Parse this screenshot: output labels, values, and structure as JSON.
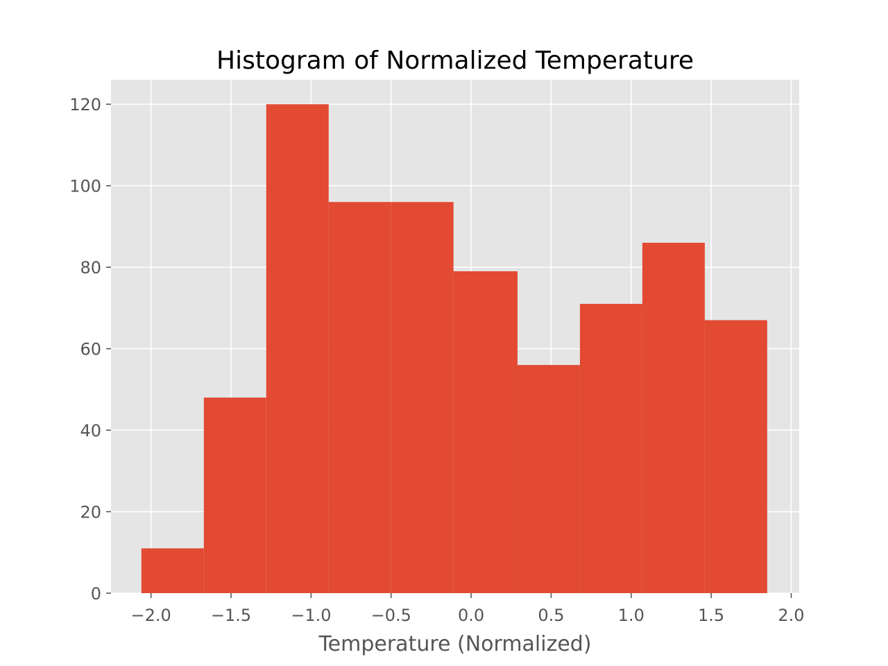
{
  "chart_data": {
    "type": "bar",
    "title": "Histogram of Normalized Temperature",
    "xlabel": "Temperature (Normalized)",
    "ylabel": "",
    "xlim": [
      -2.25,
      2.05
    ],
    "ylim": [
      0,
      126
    ],
    "grid": true,
    "bar_color": "#E24A33",
    "background_color": "#E5E5E5",
    "grid_color": "#FFFFFF",
    "bins": [
      {
        "x0": -2.06,
        "x1": -1.67,
        "count": 11
      },
      {
        "x0": -1.67,
        "x1": -1.28,
        "count": 48
      },
      {
        "x0": -1.28,
        "x1": -0.89,
        "count": 120
      },
      {
        "x0": -0.89,
        "x1": -0.5,
        "count": 96
      },
      {
        "x0": -0.5,
        "x1": -0.11,
        "count": 96
      },
      {
        "x0": -0.11,
        "x1": 0.29,
        "count": 79
      },
      {
        "x0": 0.29,
        "x1": 0.68,
        "count": 56
      },
      {
        "x0": 0.68,
        "x1": 1.07,
        "count": 71
      },
      {
        "x0": 1.07,
        "x1": 1.46,
        "count": 86
      },
      {
        "x0": 1.46,
        "x1": 1.85,
        "count": 67
      }
    ],
    "x_ticks": [
      {
        "value": -2.0,
        "label": "−2.0"
      },
      {
        "value": -1.5,
        "label": "−1.5"
      },
      {
        "value": -1.0,
        "label": "−1.0"
      },
      {
        "value": -0.5,
        "label": "−0.5"
      },
      {
        "value": 0.0,
        "label": "0.0"
      },
      {
        "value": 0.5,
        "label": "0.5"
      },
      {
        "value": 1.0,
        "label": "1.0"
      },
      {
        "value": 1.5,
        "label": "1.5"
      },
      {
        "value": 2.0,
        "label": "2.0"
      }
    ],
    "y_ticks": [
      {
        "value": 0,
        "label": "0"
      },
      {
        "value": 20,
        "label": "20"
      },
      {
        "value": 40,
        "label": "40"
      },
      {
        "value": 60,
        "label": "60"
      },
      {
        "value": 80,
        "label": "80"
      },
      {
        "value": 100,
        "label": "100"
      },
      {
        "value": 120,
        "label": "120"
      }
    ]
  }
}
